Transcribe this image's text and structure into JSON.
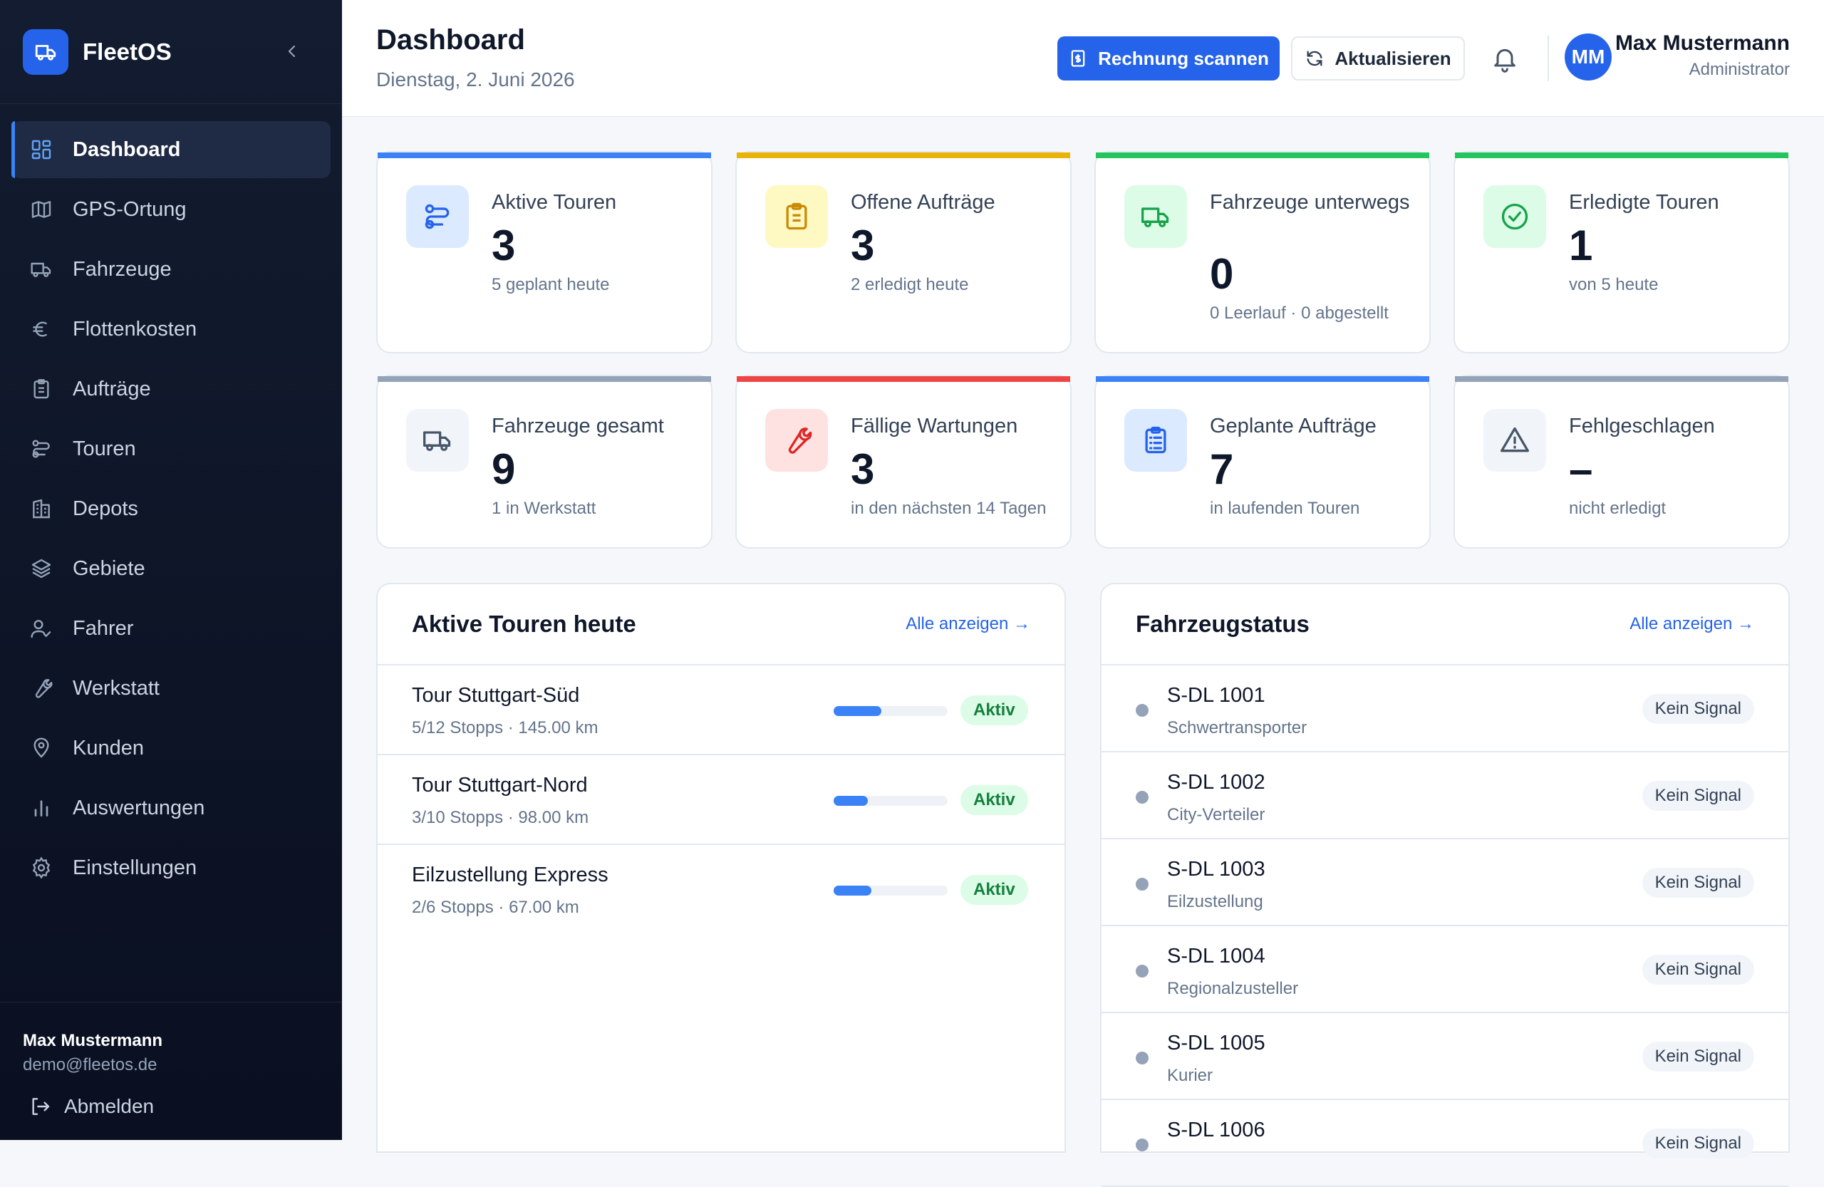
{
  "app": {
    "name": "FleetOS"
  },
  "sidebar": {
    "items": [
      {
        "label": "Dashboard",
        "icon": "dashboard-grid-icon",
        "active": true
      },
      {
        "label": "GPS-Ortung",
        "icon": "map-icon"
      },
      {
        "label": "Fahrzeuge",
        "icon": "truck-icon"
      },
      {
        "label": "Flottenkosten",
        "icon": "euro-icon"
      },
      {
        "label": "Aufträge",
        "icon": "clipboard-icon"
      },
      {
        "label": "Touren",
        "icon": "route-icon"
      },
      {
        "label": "Depots",
        "icon": "building-icon"
      },
      {
        "label": "Gebiete",
        "icon": "layers-icon"
      },
      {
        "label": "Fahrer",
        "icon": "user-check-icon"
      },
      {
        "label": "Werkstatt",
        "icon": "wrench-icon"
      },
      {
        "label": "Kunden",
        "icon": "map-pin-icon"
      },
      {
        "label": "Auswertungen",
        "icon": "bar-chart-icon"
      },
      {
        "label": "Einstellungen",
        "icon": "gear-icon"
      }
    ],
    "footer": {
      "name": "Max Mustermann",
      "email": "demo@fleetos.de",
      "logout": "Abmelden"
    }
  },
  "header": {
    "title": "Dashboard",
    "date": "Dienstag, 2. Juni 2026",
    "scan_button": "Rechnung scannen",
    "refresh_button": "Aktualisieren",
    "user": {
      "initials": "MM",
      "name": "Max Mustermann",
      "role": "Administrator"
    }
  },
  "colors": {
    "primary": "#2563eb",
    "sidebar_bg": "#0f172a",
    "accent_blue": "#3b82f6",
    "accent_yellow": "#eab308",
    "accent_green": "#22c55e",
    "accent_red": "#ef4444",
    "accent_gray": "#94a3b8",
    "active_badge_bg": "#dcfce7",
    "active_badge_text": "#15803d"
  },
  "stats": [
    {
      "label": "Aktive Touren",
      "value": "3",
      "sub": "5 geplant heute",
      "accent": "#3b82f6",
      "icon": "route-icon"
    },
    {
      "label": "Offene Aufträge",
      "value": "3",
      "sub": "2 erledigt heute",
      "accent": "#eab308",
      "icon": "clipboard-icon"
    },
    {
      "label": "Fahrzeuge unterwegs",
      "value": "0",
      "sub": "0 Leerlauf · 0 abgestellt",
      "accent": "#22c55e",
      "icon": "truck-icon"
    },
    {
      "label": "Erledigte Touren",
      "value": "1",
      "sub": "von 5 heute",
      "accent": "#22c55e",
      "icon": "check-circle-icon"
    },
    {
      "label": "Fahrzeuge gesamt",
      "value": "9",
      "sub": "1 in Werkstatt",
      "accent": "#94a3b8",
      "icon": "truck-icon"
    },
    {
      "label": "Fällige Wartungen",
      "value": "3",
      "sub": "in den nächsten 14 Tagen",
      "accent": "#ef4444",
      "icon": "wrench-icon"
    },
    {
      "label": "Geplante Aufträge",
      "value": "7",
      "sub": "in laufenden Touren",
      "accent": "#3b82f6",
      "icon": "clipboard-list-icon"
    },
    {
      "label": "Fehlgeschlagen",
      "value": "–",
      "sub": "nicht erledigt",
      "accent": "#94a3b8",
      "icon": "warning-icon"
    }
  ],
  "tours_panel": {
    "title": "Aktive Touren heute",
    "link": "Alle anzeigen →",
    "rows": [
      {
        "name": "Tour Stuttgart-Süd",
        "meta": "5/12 Stopps · 145.00 km",
        "progress": 0.42,
        "status": "Aktiv"
      },
      {
        "name": "Tour Stuttgart-Nord",
        "meta": "3/10 Stopps · 98.00 km",
        "progress": 0.3,
        "status": "Aktiv"
      },
      {
        "name": "Eilzustellung Express",
        "meta": "2/6 Stopps · 67.00 km",
        "progress": 0.33,
        "status": "Aktiv"
      }
    ]
  },
  "vehicles_panel": {
    "title": "Fahrzeugstatus",
    "link": "Alle anzeigen →",
    "rows": [
      {
        "plate": "S-DL 1001",
        "type": "Schwertransporter",
        "status": "Kein Signal"
      },
      {
        "plate": "S-DL 1002",
        "type": "City-Verteiler",
        "status": "Kein Signal"
      },
      {
        "plate": "S-DL 1003",
        "type": "Eilzustellung",
        "status": "Kein Signal"
      },
      {
        "plate": "S-DL 1004",
        "type": "Regionalzusteller",
        "status": "Kein Signal"
      },
      {
        "plate": "S-DL 1005",
        "type": "Kurier",
        "status": "Kein Signal"
      },
      {
        "plate": "S-DL 1006",
        "type": "",
        "status": "Kein Signal"
      }
    ]
  }
}
